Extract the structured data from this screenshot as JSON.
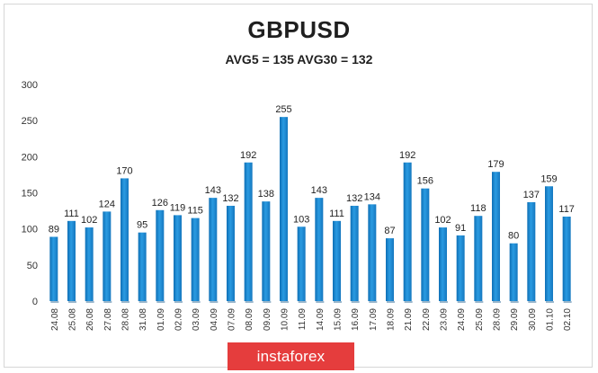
{
  "chart_data": {
    "type": "bar",
    "title": "GBPUSD",
    "subtitle": "AVG5 = 135 AVG30 = 132",
    "categories": [
      "24.08",
      "25.08",
      "26.08",
      "27.08",
      "28.08",
      "31.08",
      "01.09",
      "02.09",
      "03.09",
      "04.09",
      "07.09",
      "08.09",
      "09.09",
      "10.09",
      "11.09",
      "14.09",
      "15.09",
      "16.09",
      "17.09",
      "18.09",
      "21.09",
      "22.09",
      "23.09",
      "24.09",
      "25.09",
      "28.09",
      "29.09",
      "30.09",
      "01.10",
      "02.10"
    ],
    "values": [
      89,
      111,
      102,
      124,
      170,
      95,
      126,
      119,
      115,
      143,
      132,
      192,
      138,
      255,
      103,
      143,
      111,
      132,
      134,
      87,
      192,
      156,
      102,
      91,
      118,
      179,
      80,
      137,
      159,
      117
    ],
    "ylim": [
      0,
      300
    ],
    "yticks": [
      0,
      50,
      100,
      150,
      200,
      250,
      300
    ],
    "grid": false,
    "data_labels": true,
    "bar_color": "#1e8fd6"
  },
  "watermark": {
    "text": "instaforex"
  }
}
